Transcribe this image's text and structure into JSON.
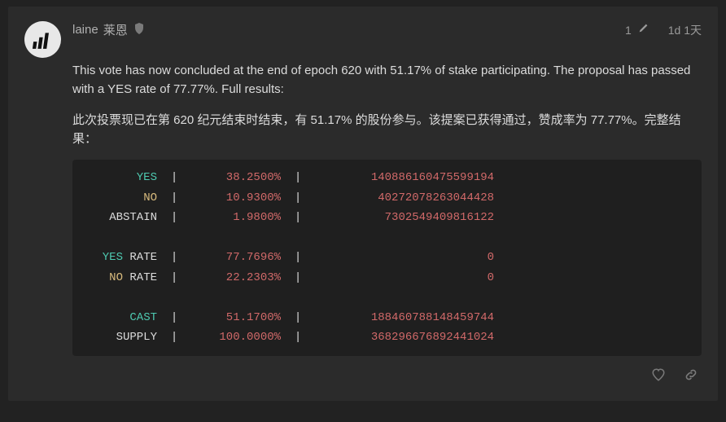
{
  "post": {
    "author": {
      "username": "laine",
      "username_cn": "莱恩"
    },
    "edit_count": "1",
    "timestamp": "1d 1天",
    "paragraphs": {
      "p1": "This vote has now concluded at the end of epoch 620 with 51.17% of stake participating. The proposal has passed with a YES rate of 77.77%. Full results:",
      "p2": "此次投票现已在第 620 纪元结束时结束，有 51.17% 的股份参与。该提案已获得通过，赞成率为 77.77%。完整结果："
    },
    "results": {
      "rows": [
        {
          "label": "YES",
          "label_color": "c-teal",
          "pct": "38.2500%",
          "value": "140886160475599194"
        },
        {
          "label": "NO",
          "label_color": "c-yellow",
          "pct": "10.9300%",
          "value": "40272078263044428"
        },
        {
          "label": "ABSTAIN",
          "label_color": "c-plain",
          "pct": "1.9800%",
          "value": "7302549409816122"
        }
      ],
      "rate_rows": [
        {
          "label_pre": "YES",
          "label_pre_color": "c-teal",
          "label_suf": " RATE",
          "pct": "77.7696%",
          "value": "0"
        },
        {
          "label_pre": "NO",
          "label_pre_color": "c-yellow",
          "label_suf": " RATE",
          "pct": "22.2303%",
          "value": "0"
        }
      ],
      "supply_rows": [
        {
          "label": "CAST",
          "label_color": "c-teal",
          "pct": "51.1700%",
          "value": "188460788148459744"
        },
        {
          "label": "SUPPLY",
          "label_color": "c-plain",
          "pct": "100.0000%",
          "value": "368296676892441024"
        }
      ],
      "colors": {
        "bg": "#1f1f1f",
        "teal": "#4ec9b0",
        "yellow": "#d7ba7d",
        "red": "#d16969",
        "plain": "#dcdcdc"
      }
    }
  }
}
